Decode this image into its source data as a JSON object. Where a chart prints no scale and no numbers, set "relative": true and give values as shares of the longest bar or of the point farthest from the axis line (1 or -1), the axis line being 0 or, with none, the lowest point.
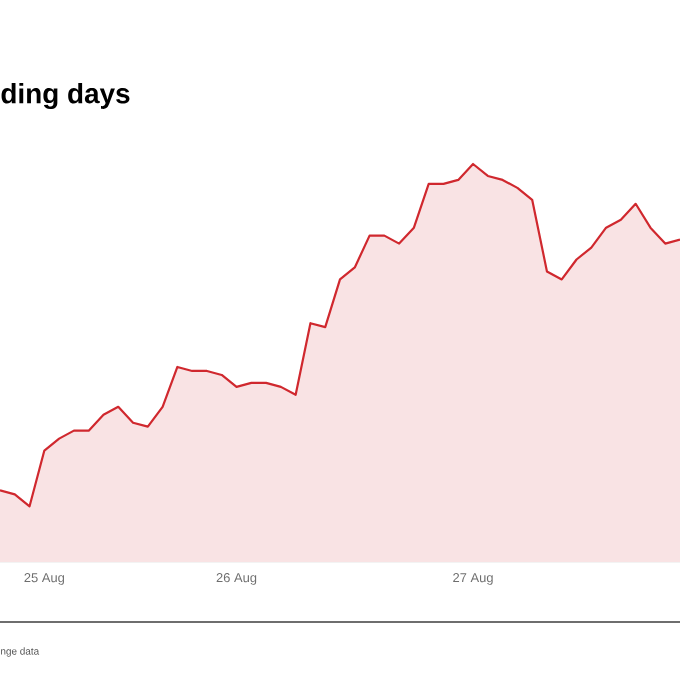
{
  "chart_data": {
    "type": "area",
    "title": "ding days",
    "relative": true,
    "annotations": [
      "nge data"
    ],
    "categories": [
      null,
      null,
      null,
      "25 Aug",
      null,
      null,
      null,
      null,
      null,
      null,
      null,
      null,
      null,
      null,
      null,
      null,
      "26 Aug",
      null,
      null,
      null,
      null,
      null,
      null,
      null,
      null,
      null,
      null,
      null,
      null,
      null,
      null,
      null,
      "27 Aug",
      null,
      null,
      null,
      null,
      null,
      null,
      null,
      null,
      null,
      null,
      null,
      null,
      null,
      null
    ],
    "series": [
      {
        "color": "#d0282e",
        "values": [
          0.18,
          0.17,
          0.14,
          0.28,
          0.31,
          0.33,
          0.33,
          0.37,
          0.39,
          0.35,
          0.34,
          0.39,
          0.49,
          0.48,
          0.48,
          0.47,
          0.44,
          0.45,
          0.45,
          0.44,
          0.42,
          0.6,
          0.59,
          0.71,
          0.74,
          0.82,
          0.82,
          0.8,
          0.84,
          0.95,
          0.95,
          0.96,
          1.0,
          0.97,
          0.96,
          0.94,
          0.91,
          0.73,
          0.71,
          0.76,
          0.79,
          0.84,
          0.86,
          0.9,
          0.84,
          0.8,
          0.81
        ]
      }
    ]
  }
}
